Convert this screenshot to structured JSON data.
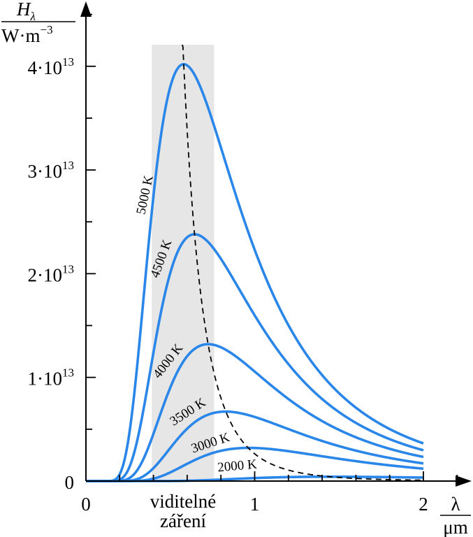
{
  "chart_data": {
    "type": "line",
    "title": "",
    "ylabel": {
      "top_symbol": "H",
      "top_subscript": "λ",
      "bottom": "W·m",
      "bottom_exponent": "−3"
    },
    "xlabel": {
      "top": "λ",
      "bottom": "μm"
    },
    "xlim": [
      0,
      2.2
    ],
    "ylim": [
      0,
      45000000000000.0
    ],
    "x_ticks": [
      {
        "value": 0,
        "label": "0"
      },
      {
        "value": 1,
        "label": "1"
      },
      {
        "value": 2,
        "label": "2"
      }
    ],
    "y_ticks": [
      {
        "value": 0,
        "mantissa": "0",
        "exponent": ""
      },
      {
        "value": 10000000000000.0,
        "mantissa": "1·10",
        "exponent": "13"
      },
      {
        "value": 20000000000000.0,
        "mantissa": "2·10",
        "exponent": "13"
      },
      {
        "value": 30000000000000.0,
        "mantissa": "3·10",
        "exponent": "13"
      },
      {
        "value": 40000000000000.0,
        "mantissa": "4·10",
        "exponent": "13"
      }
    ],
    "visible_band": {
      "x_range": [
        0.39,
        0.76
      ],
      "label_line1": "viditelné",
      "label_line2": "záření"
    },
    "wien_peak_line": {
      "style": "dashed",
      "x_range": [
        0.57,
        2.0
      ]
    },
    "x_curve_end": 2.0,
    "series": [
      {
        "name": "5000 K",
        "temperature": 5000,
        "peak_x": 0.58,
        "peak_y": 40200000000000.0
      },
      {
        "name": "4500 K",
        "temperature": 4500,
        "peak_x": 0.644,
        "peak_y": 23800000000000.0
      },
      {
        "name": "4000 K",
        "temperature": 4000,
        "peak_x": 0.725,
        "peak_y": 13200000000000.0
      },
      {
        "name": "3500 K",
        "temperature": 3500,
        "peak_x": 0.828,
        "peak_y": 6700000000000.0
      },
      {
        "name": "3000 K",
        "temperature": 3000,
        "peak_x": 0.966,
        "peak_y": 3200000000000.0
      },
      {
        "name": "2000 K",
        "temperature": 2000,
        "peak_x": 1.45,
        "peak_y": 420000000000.0
      }
    ],
    "colors": {
      "curve": "#2a86e8",
      "band": "#e6e6e6",
      "axis": "#000000"
    }
  }
}
